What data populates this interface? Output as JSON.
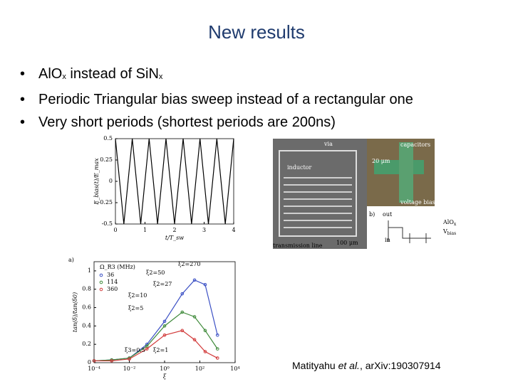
{
  "title": "New results",
  "bullets": [
    [
      "AlO",
      "x",
      " instead of SiN",
      "x"
    ],
    "Periodic Triangular bias sweep instead of a rectangular one",
    "Very short periods (shortest periods are 200ns)"
  ],
  "bias_plot": {
    "type": "line",
    "ylabel": "E_bias(t)/E_max",
    "xlabel": "t/T_sw",
    "x": [
      0,
      0.285,
      0.57,
      0.855,
      1.14,
      1.425,
      1.71,
      2.0,
      2.29,
      2.575,
      2.86,
      3.145,
      3.43,
      3.715,
      4.0
    ],
    "values": [
      0.5,
      -0.5,
      0.5,
      -0.5,
      0.5,
      -0.5,
      0.5,
      -0.5,
      0.5,
      -0.5,
      0.5,
      -0.5,
      0.5,
      -0.5,
      0.5
    ],
    "color": "#000000",
    "xlim": [
      0,
      4
    ],
    "xticks": [
      0,
      1,
      2,
      3,
      4
    ],
    "ylim": [
      -0.5,
      0.5
    ],
    "yticks": [
      -0.5,
      -0.25,
      0,
      0.25,
      0.5
    ]
  },
  "device_image": {
    "labels": [
      "via",
      "inductor",
      "capacitors",
      "20 μm",
      "voltage bias",
      "transmission line",
      "100 μm",
      "b)",
      "out",
      "in",
      "AlO",
      "V"
    ],
    "subscripts": [
      "x",
      "bias"
    ]
  },
  "loss_plot": {
    "type": "line",
    "panel": "a)",
    "ylabel": "tan(δ)/tan(δ0)",
    "xlabel": "ξ",
    "legend_title": "Ω_R3 (MHz)",
    "log_x": true,
    "x": [
      0.0001,
      0.001,
      0.01,
      0.1,
      1,
      10,
      50,
      200,
      1000
    ],
    "series": [
      {
        "name": "36",
        "color": "#3a4fc4",
        "values": [
          0.02,
          0.03,
          0.05,
          0.2,
          0.45,
          0.75,
          0.9,
          0.85,
          0.3
        ]
      },
      {
        "name": "114",
        "color": "#3f8a3a",
        "values": [
          0.02,
          0.03,
          0.05,
          0.18,
          0.4,
          0.55,
          0.5,
          0.35,
          0.15
        ]
      },
      {
        "name": "360",
        "color": "#d23a3a",
        "values": [
          0.02,
          0.02,
          0.04,
          0.15,
          0.3,
          0.35,
          0.25,
          0.12,
          0.05
        ]
      }
    ],
    "annotations": [
      "ξ2=270",
      "ξ2=50",
      "ξ2=27",
      "ξ2=10",
      "ξ2=5",
      "ξ3=0.5",
      "ξ2=1"
    ],
    "xlim": [
      0.0001,
      10000
    ],
    "xticks": [
      {
        "value": 0.0001,
        "label": "10⁻⁴"
      },
      {
        "value": 0.01,
        "label": "10⁻²"
      },
      {
        "value": 1,
        "label": "10⁰"
      },
      {
        "value": 100,
        "label": "10²"
      },
      {
        "value": 10000,
        "label": "10⁴"
      }
    ],
    "ylim": [
      0,
      1.1
    ],
    "yticks": [
      0,
      0.2,
      0.4,
      0.6,
      0.8,
      1
    ]
  },
  "citation": [
    "Matityahu ",
    "et al.",
    ", arXiv:190307914"
  ]
}
